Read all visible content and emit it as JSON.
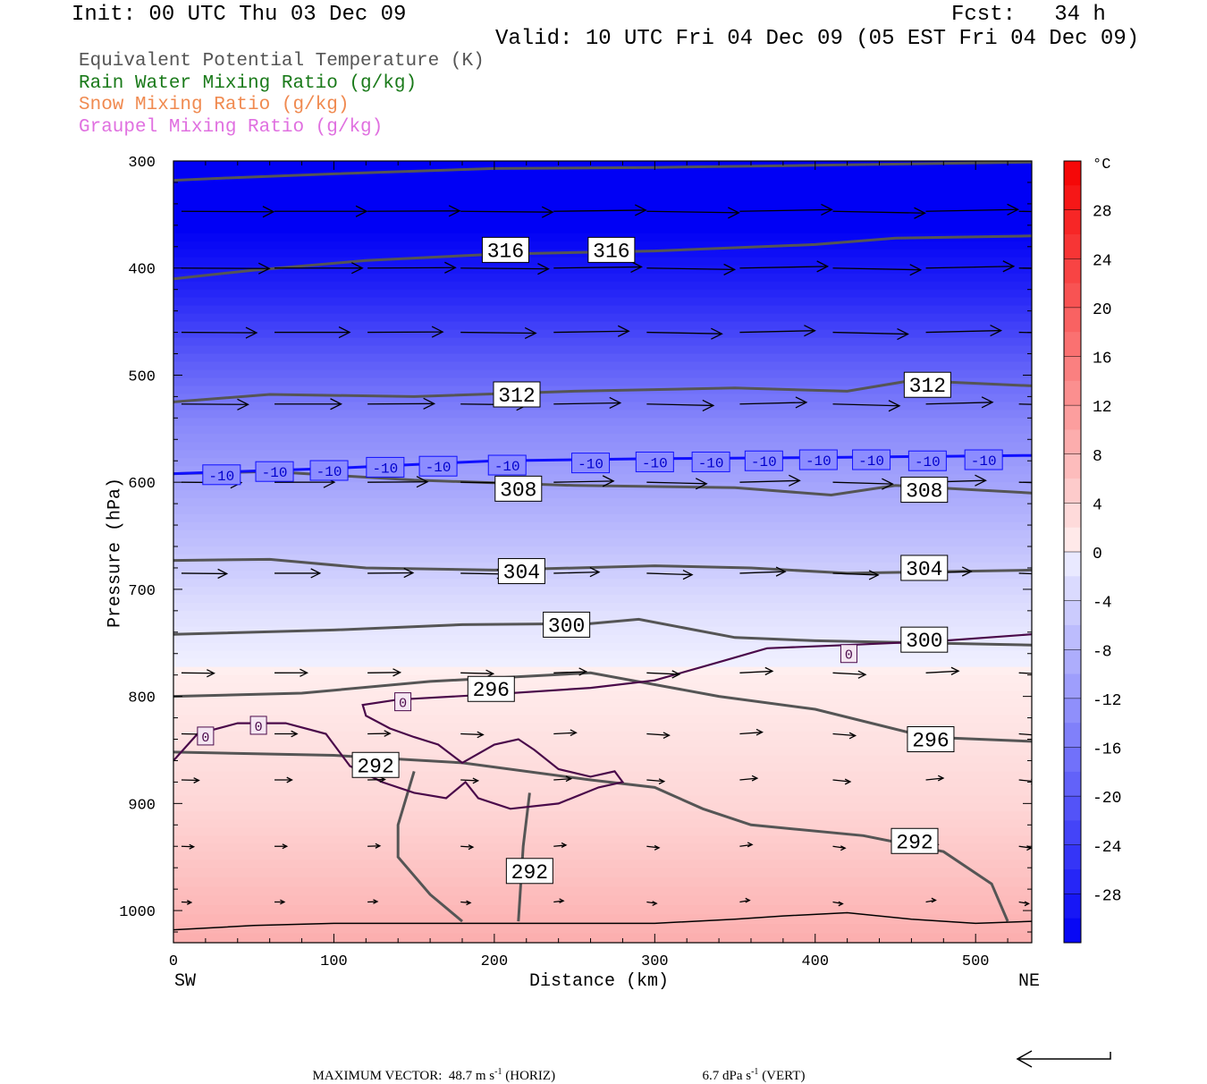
{
  "header": {
    "init": "Init: 00 UTC Thu 03 Dec 09",
    "fcst": "Fcst:   34 h",
    "valid": "Valid: 10 UTC Fri 04 Dec 09 (05 EST Fri 04 Dec 09)"
  },
  "legend": {
    "items": [
      {
        "label": "Equivalent Potential Temperature (K)",
        "color": "#555555"
      },
      {
        "label": "Rain Water Mixing Ratio (g/kg)",
        "color": "#1a7a1a"
      },
      {
        "label": "Snow Mixing Ratio (g/kg)",
        "color": "#f08a50"
      },
      {
        "label": "Graupel Mixing Ratio (g/kg)",
        "color": "#e070e0"
      }
    ]
  },
  "footer": {
    "max_vector_label": "MAXIMUM VECTOR:",
    "horiz_value": "48.7 m s",
    "horiz_exp": "-1",
    "horiz_tag": "(HORIZ)",
    "vert_value": "6.7 dPa s",
    "vert_exp": "-1",
    "vert_tag": "(VERT)"
  },
  "chart_data": {
    "type": "heatmap",
    "title": "",
    "xlabel": "Distance (km)",
    "ylabel": "Pressure (hPa)",
    "x_range": [
      0,
      535
    ],
    "y_range": [
      300,
      1030
    ],
    "x_ticks": [
      0,
      100,
      200,
      300,
      400,
      500
    ],
    "y_ticks": [
      300,
      400,
      500,
      600,
      700,
      800,
      900,
      1000
    ],
    "x_end_labels": {
      "left": "SW",
      "right": "NE"
    },
    "colorbar": {
      "unit": "°C",
      "ticks": [
        28,
        24,
        20,
        16,
        12,
        8,
        4,
        0,
        -4,
        -8,
        -12,
        -16,
        -20,
        -24,
        -28
      ],
      "range": [
        -32,
        32
      ]
    },
    "temperature_profile": [
      {
        "p": 300,
        "t": -32
      },
      {
        "p": 360,
        "t": -32
      },
      {
        "p": 420,
        "t": -27
      },
      {
        "p": 480,
        "t": -20
      },
      {
        "p": 540,
        "t": -14
      },
      {
        "p": 600,
        "t": -10
      },
      {
        "p": 660,
        "t": -6
      },
      {
        "p": 720,
        "t": -2
      },
      {
        "p": 780,
        "t": 0.5
      },
      {
        "p": 840,
        "t": 2
      },
      {
        "p": 900,
        "t": 3.5
      },
      {
        "p": 960,
        "t": 6
      },
      {
        "p": 1030,
        "t": 9
      }
    ],
    "theta_e_contours": [
      {
        "value": 316,
        "points": [
          [
            0,
            318
          ],
          [
            30,
            316
          ],
          [
            100,
            312
          ],
          [
            200,
            307
          ],
          [
            300,
            306
          ],
          [
            400,
            304
          ],
          [
            535,
            301
          ]
        ]
      },
      {
        "value": 316,
        "points": [
          [
            0,
            410
          ],
          [
            50,
            402
          ],
          [
            120,
            393
          ],
          [
            200,
            387
          ],
          [
            300,
            384
          ],
          [
            400,
            378
          ],
          [
            450,
            372
          ],
          [
            535,
            370
          ]
        ]
      },
      {
        "value": 312,
        "points": [
          [
            0,
            525
          ],
          [
            60,
            518
          ],
          [
            150,
            520
          ],
          [
            250,
            515
          ],
          [
            350,
            512
          ],
          [
            420,
            515
          ],
          [
            460,
            505
          ],
          [
            535,
            510
          ]
        ]
      },
      {
        "value": 308,
        "points": [
          [
            0,
            592
          ],
          [
            60,
            590
          ],
          [
            150,
            598
          ],
          [
            250,
            603
          ],
          [
            350,
            605
          ],
          [
            410,
            612
          ],
          [
            450,
            603
          ],
          [
            535,
            610
          ]
        ]
      },
      {
        "value": 304,
        "points": [
          [
            0,
            673
          ],
          [
            60,
            672
          ],
          [
            120,
            680
          ],
          [
            200,
            682
          ],
          [
            300,
            678
          ],
          [
            360,
            680
          ],
          [
            420,
            685
          ],
          [
            535,
            682
          ]
        ]
      },
      {
        "value": 300,
        "points": [
          [
            0,
            742
          ],
          [
            100,
            738
          ],
          [
            180,
            733
          ],
          [
            260,
            732
          ],
          [
            290,
            728
          ],
          [
            350,
            745
          ],
          [
            400,
            748
          ],
          [
            535,
            752
          ]
        ]
      },
      {
        "value": 296,
        "points": [
          [
            0,
            800
          ],
          [
            80,
            797
          ],
          [
            160,
            786
          ],
          [
            260,
            778
          ],
          [
            340,
            800
          ],
          [
            400,
            812
          ],
          [
            470,
            838
          ],
          [
            535,
            842
          ]
        ]
      },
      {
        "value": 292,
        "points": [
          [
            0,
            852
          ],
          [
            100,
            855
          ],
          [
            180,
            862
          ],
          [
            260,
            878
          ],
          [
            300,
            885
          ],
          [
            330,
            905
          ],
          [
            360,
            920
          ],
          [
            430,
            930
          ],
          [
            480,
            945
          ],
          [
            510,
            975
          ],
          [
            520,
            1010
          ]
        ]
      },
      {
        "value": 292,
        "points": [
          [
            150,
            870
          ],
          [
            140,
            920
          ],
          [
            140,
            950
          ],
          [
            160,
            985
          ],
          [
            180,
            1010
          ]
        ]
      },
      {
        "value": 292,
        "points": [
          [
            222,
            890
          ],
          [
            218,
            940
          ],
          [
            215,
            1010
          ]
        ]
      }
    ],
    "isotherm_minus10": {
      "value": -10,
      "points": [
        [
          0,
          592
        ],
        [
          100,
          587
        ],
        [
          200,
          580
        ],
        [
          300,
          578
        ],
        [
          400,
          577
        ],
        [
          535,
          575
        ]
      ]
    },
    "graupel_zero_contours": [
      {
        "value": 0,
        "points": [
          [
            0,
            860
          ],
          [
            15,
            835
          ],
          [
            40,
            825
          ],
          [
            70,
            825
          ],
          [
            95,
            835
          ],
          [
            110,
            865
          ],
          [
            130,
            880
          ],
          [
            150,
            890
          ],
          [
            170,
            895
          ],
          [
            182,
            880
          ],
          [
            190,
            895
          ],
          [
            210,
            905
          ],
          [
            240,
            900
          ],
          [
            265,
            885
          ],
          [
            280,
            880
          ],
          [
            275,
            870
          ],
          [
            260,
            875
          ],
          [
            240,
            868
          ],
          [
            225,
            850
          ],
          [
            215,
            840
          ],
          [
            200,
            845
          ],
          [
            180,
            862
          ],
          [
            165,
            845
          ],
          [
            150,
            838
          ],
          [
            135,
            830
          ],
          [
            120,
            818
          ],
          [
            118,
            808
          ],
          [
            140,
            803
          ],
          [
            200,
            798
          ],
          [
            260,
            792
          ],
          [
            300,
            785
          ],
          [
            340,
            768
          ],
          [
            370,
            755
          ],
          [
            420,
            752
          ],
          [
            480,
            748
          ],
          [
            535,
            742
          ]
        ]
      }
    ],
    "contour_labels": [
      {
        "text": "316",
        "x": 207,
        "y": 383
      },
      {
        "text": "316",
        "x": 273,
        "y": 383
      },
      {
        "text": "312",
        "x": 214,
        "y": 518
      },
      {
        "text": "312",
        "x": 470,
        "y": 509
      },
      {
        "text": "308",
        "x": 215,
        "y": 606
      },
      {
        "text": "308",
        "x": 468,
        "y": 607
      },
      {
        "text": "304",
        "x": 217,
        "y": 683
      },
      {
        "text": "304",
        "x": 468,
        "y": 680
      },
      {
        "text": "300",
        "x": 245,
        "y": 733
      },
      {
        "text": "300",
        "x": 468,
        "y": 747
      },
      {
        "text": "296",
        "x": 198,
        "y": 793
      },
      {
        "text": "296",
        "x": 472,
        "y": 840
      },
      {
        "text": "292",
        "x": 126,
        "y": 864
      },
      {
        "text": "292",
        "x": 222,
        "y": 963
      },
      {
        "text": "292",
        "x": 462,
        "y": 935
      }
    ],
    "isotherm_labels": [
      {
        "text": "-10",
        "x": 30,
        "y": 593
      },
      {
        "text": "-10",
        "x": 63,
        "y": 590
      },
      {
        "text": "-10",
        "x": 97,
        "y": 589
      },
      {
        "text": "-10",
        "x": 132,
        "y": 586
      },
      {
        "text": "-10",
        "x": 165,
        "y": 585
      },
      {
        "text": "-10",
        "x": 208,
        "y": 584
      },
      {
        "text": "-10",
        "x": 260,
        "y": 582
      },
      {
        "text": "-10",
        "x": 300,
        "y": 581
      },
      {
        "text": "-10",
        "x": 335,
        "y": 581
      },
      {
        "text": "-10",
        "x": 368,
        "y": 580
      },
      {
        "text": "-10",
        "x": 402,
        "y": 579
      },
      {
        "text": "-10",
        "x": 435,
        "y": 579
      },
      {
        "text": "-10",
        "x": 470,
        "y": 580
      },
      {
        "text": "-10",
        "x": 505,
        "y": 579
      }
    ],
    "zero_labels": [
      {
        "text": "0",
        "x": 20,
        "y": 837
      },
      {
        "text": "0",
        "x": 53,
        "y": 827
      },
      {
        "text": "0",
        "x": 143,
        "y": 805
      },
      {
        "text": "0",
        "x": 421,
        "y": 760
      }
    ],
    "wind_vectors": [
      {
        "p": 347,
        "speed": 1.0
      },
      {
        "p": 400,
        "speed": 0.95
      },
      {
        "p": 460,
        "speed": 0.8
      },
      {
        "p": 527,
        "speed": 0.7
      },
      {
        "p": 600,
        "speed": 0.62
      },
      {
        "p": 685,
        "speed": 0.45
      },
      {
        "p": 778,
        "speed": 0.3
      },
      {
        "p": 835,
        "speed": 0.18
      },
      {
        "p": 878,
        "speed": 0.12
      },
      {
        "p": 940,
        "speed": 0.06
      },
      {
        "p": 992,
        "speed": 0.03
      }
    ]
  }
}
